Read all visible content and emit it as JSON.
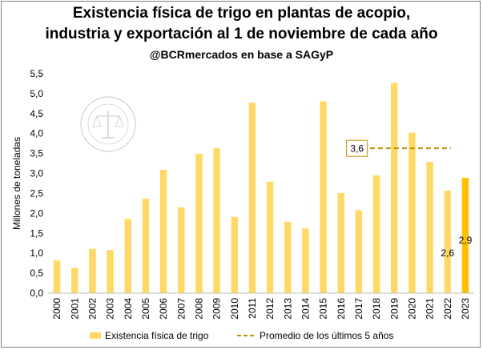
{
  "chart_data": {
    "type": "bar",
    "title": "Existencia física de trigo en plantas de acopio,",
    "title_line2": "industria y exportación al 1 de noviembre de cada año",
    "subtitle": "@BCRmercados en base a SAGyP",
    "ylabel": "Millones de toneladas",
    "xlabel": "",
    "ylim": [
      0,
      5.5
    ],
    "yticks": [
      "0,0",
      "0,5",
      "1,0",
      "1,5",
      "2,0",
      "2,5",
      "3,0",
      "3,5",
      "4,0",
      "4,5",
      "5,0",
      "5,5"
    ],
    "categories": [
      "2000",
      "2001",
      "2002",
      "2003",
      "2004",
      "2005",
      "2006",
      "2007",
      "2008",
      "2009",
      "2010",
      "2011",
      "2012",
      "2013",
      "2014",
      "2015",
      "2016",
      "2017",
      "2018",
      "2019",
      "2020",
      "2021",
      "2022",
      "2023"
    ],
    "series": [
      {
        "name": "Existencia física de trigo",
        "values": [
          0.82,
          0.63,
          1.11,
          1.08,
          1.86,
          2.37,
          3.09,
          2.15,
          3.49,
          3.63,
          1.91,
          4.77,
          2.79,
          1.79,
          1.62,
          4.81,
          2.51,
          2.08,
          2.95,
          5.27,
          4.02,
          3.29,
          2.57,
          2.89
        ],
        "color": "#FFD966",
        "highlight_color": "#FFC000"
      },
      {
        "name": "Promedio de los últimos 5 años",
        "type": "line",
        "style": "dashed",
        "value": 3.63,
        "from": "2018",
        "to": "2022",
        "color": "#BF9000"
      }
    ],
    "data_labels": [
      {
        "category": "2022",
        "text": "2,6"
      },
      {
        "category": "2023",
        "text": "2,9"
      }
    ],
    "average_label": "3,6",
    "watermark_text": "BOLSA DE COMERCIO DE ROSARIO",
    "legend_position": "bottom",
    "grid": false
  }
}
